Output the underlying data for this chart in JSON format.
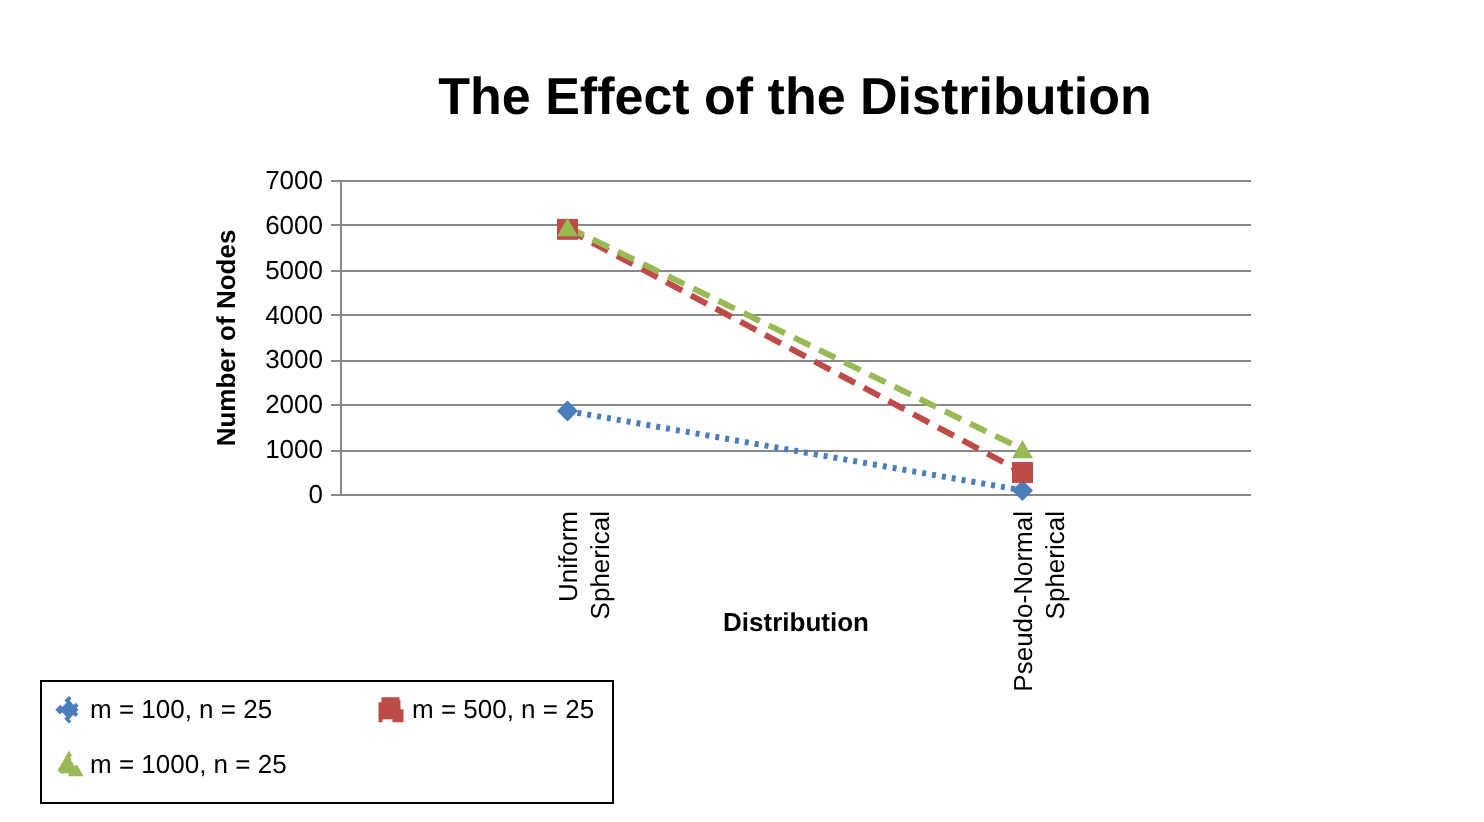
{
  "chart_data": {
    "type": "line",
    "title": "The Effect of the Distribution",
    "xlabel": "Distribution",
    "ylabel": "Number of Nodes",
    "categories": [
      "Uniform Spherical",
      "Pseudo-Normal Spherical"
    ],
    "series": [
      {
        "name": "m = 100, n = 25",
        "color": "#4a7ebb",
        "values": [
          1850,
          80
        ],
        "marker": "diamond",
        "line_style": "dotted"
      },
      {
        "name": "m = 500, n = 25",
        "color": "#be4b48",
        "values": [
          5900,
          480
        ],
        "marker": "square",
        "line_style": "dashed"
      },
      {
        "name": "m = 1000, n = 25",
        "color": "#98b954",
        "values": [
          5950,
          1000
        ],
        "marker": "triangle",
        "line_style": "dashed"
      }
    ],
    "ylim": [
      0,
      7000
    ],
    "yticks": [
      0,
      1000,
      2000,
      3000,
      4000,
      5000,
      6000,
      7000
    ],
    "grid": "y",
    "legend": "bottom"
  }
}
